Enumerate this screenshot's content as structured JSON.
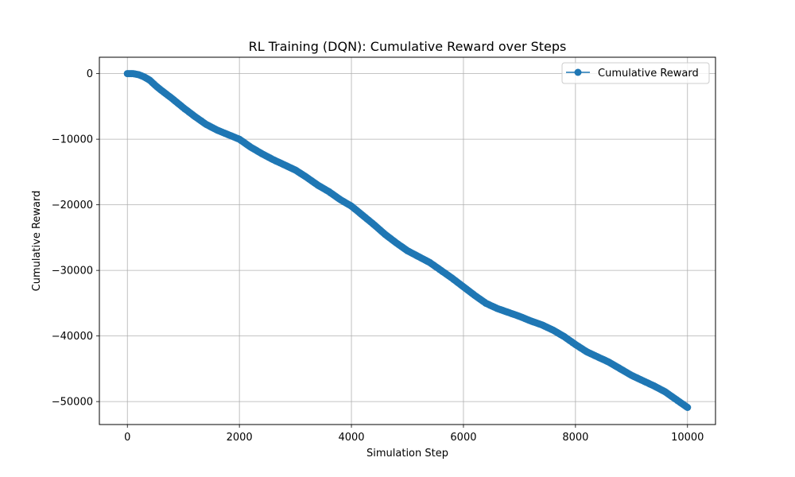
{
  "chart_data": {
    "type": "line",
    "title": "RL Training (DQN): Cumulative Reward over Steps",
    "xlabel": "Simulation Step",
    "ylabel": "Cumulative Reward",
    "xlim": [
      -500,
      10500
    ],
    "ylim": [
      -53500,
      2500
    ],
    "xticks": [
      0,
      2000,
      4000,
      6000,
      8000,
      10000
    ],
    "xtick_labels": [
      "0",
      "2000",
      "4000",
      "6000",
      "8000",
      "10000"
    ],
    "yticks": [
      0,
      -10000,
      -20000,
      -30000,
      -40000,
      -50000
    ],
    "ytick_labels": [
      "0",
      "−10000",
      "−20000",
      "−30000",
      "−40000",
      "−50000"
    ],
    "grid": true,
    "legend": {
      "position": "top-right",
      "entries": [
        "Cumulative Reward"
      ]
    },
    "series": [
      {
        "name": "Cumulative Reward",
        "color": "#1f77b4",
        "marker": "circle",
        "x": [
          0,
          100,
          200,
          300,
          400,
          500,
          600,
          800,
          1000,
          1200,
          1400,
          1600,
          1800,
          2000,
          2200,
          2400,
          2600,
          2800,
          3000,
          3200,
          3400,
          3600,
          3800,
          4000,
          4200,
          4400,
          4600,
          4800,
          5000,
          5200,
          5400,
          5600,
          5800,
          6000,
          6200,
          6400,
          6600,
          6800,
          7000,
          7200,
          7400,
          7600,
          7800,
          8000,
          8200,
          8400,
          8600,
          8800,
          9000,
          9200,
          9400,
          9600,
          9800,
          10000
        ],
        "values": [
          0,
          0,
          -150,
          -500,
          -1000,
          -1800,
          -2500,
          -3800,
          -5200,
          -6500,
          -7700,
          -8600,
          -9300,
          -10000,
          -11200,
          -12200,
          -13100,
          -13900,
          -14700,
          -15800,
          -17000,
          -18000,
          -19200,
          -20200,
          -21600,
          -23000,
          -24500,
          -25800,
          -27000,
          -27900,
          -28800,
          -30000,
          -31200,
          -32500,
          -33800,
          -35000,
          -35800,
          -36400,
          -37000,
          -37700,
          -38300,
          -39100,
          -40100,
          -41300,
          -42400,
          -43200,
          -44000,
          -45000,
          -46000,
          -46800,
          -47600,
          -48500,
          -49700,
          -50900
        ]
      }
    ]
  }
}
